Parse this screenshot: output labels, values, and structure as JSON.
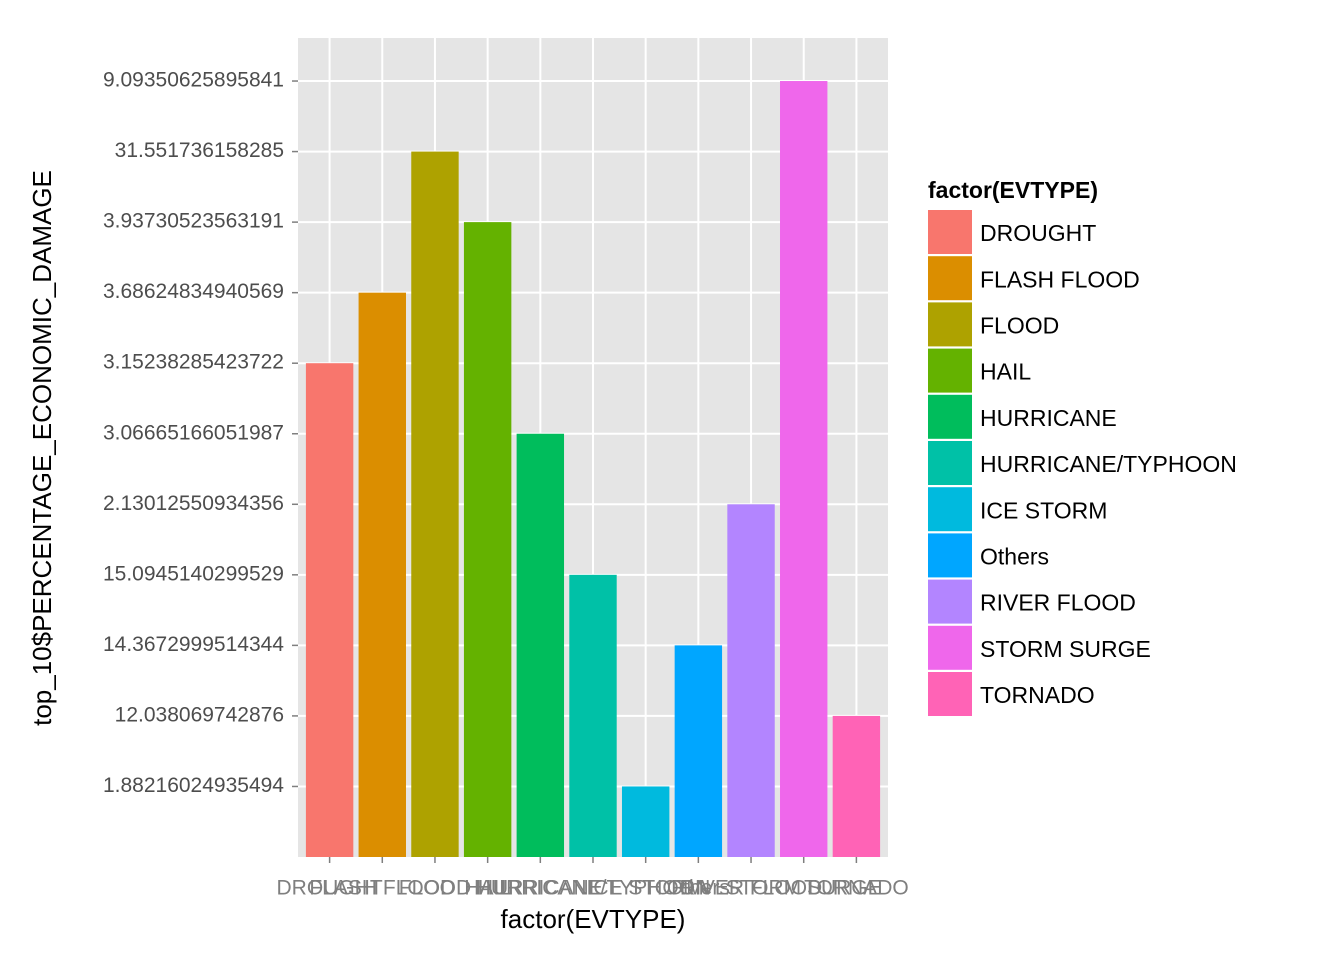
{
  "chart_data": {
    "type": "bar",
    "x_label": "factor(EVTYPE)",
    "y_label": "top_10$PERCENTAGE_ECONOMIC_DAMAGE",
    "legend_title": "factor(EVTYPE)",
    "legend_position": "right",
    "grid": true,
    "categories": [
      "DROUGHT",
      "FLASH FLOOD",
      "FLOOD",
      "HAIL",
      "HURRICANE",
      "HURRICANE/TYPHOON",
      "ICE STORM",
      "Others",
      "RIVER FLOOD",
      "STORM SURGE",
      "TORNADO"
    ],
    "values": [
      7,
      8,
      10,
      9,
      6,
      4,
      1,
      3,
      5,
      11,
      2
    ],
    "colors": [
      "#F8766D",
      "#DB8E00",
      "#AEA200",
      "#64B200",
      "#00BD5C",
      "#00C1A7",
      "#00BADE",
      "#00A6FF",
      "#B385FF",
      "#EF67EB",
      "#FF63B6"
    ],
    "ylim": [
      0,
      11.61
    ],
    "yticks": [
      {
        "value": 1,
        "label": "1.88216024935494"
      },
      {
        "value": 2,
        "label": "12.038069742876"
      },
      {
        "value": 3,
        "label": "14.3672999514344"
      },
      {
        "value": 4,
        "label": "15.0945140299529"
      },
      {
        "value": 5,
        "label": "2.13012550934356"
      },
      {
        "value": 6,
        "label": "3.06665166051987"
      },
      {
        "value": 7,
        "label": "3.15238285423722"
      },
      {
        "value": 8,
        "label": "3.68624834940569"
      },
      {
        "value": 9,
        "label": "3.93730523563191"
      },
      {
        "value": 10,
        "label": "31.551736158285"
      },
      {
        "value": 11,
        "label": "9.09350625895841"
      }
    ]
  }
}
